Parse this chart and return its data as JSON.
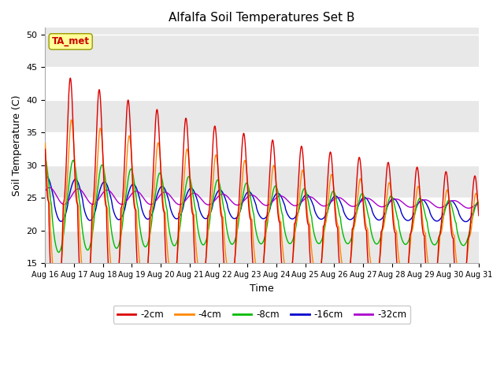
{
  "title": "Alfalfa Soil Temperatures Set B",
  "xlabel": "Time",
  "ylabel": "Soil Temperature (C)",
  "ylim": [
    15,
    51
  ],
  "yticks": [
    15,
    20,
    25,
    30,
    35,
    40,
    45,
    50
  ],
  "xtick_labels": [
    "Aug 16",
    "Aug 17",
    "Aug 18",
    "Aug 19",
    "Aug 20",
    "Aug 21",
    "Aug 22",
    "Aug 23",
    "Aug 24",
    "Aug 25",
    "Aug 26",
    "Aug 27",
    "Aug 28",
    "Aug 29",
    "Aug 30",
    "Aug 31"
  ],
  "colors": {
    "-2cm": "#dd0000",
    "-4cm": "#ff8800",
    "-8cm": "#00bb00",
    "-16cm": "#0000cc",
    "-32cm": "#aa00cc"
  },
  "background_color": "#e8e8e8",
  "fig_background": "#ffffff",
  "ta_met_box_color": "#ffff99",
  "ta_met_text_color": "#cc0000",
  "grid_color": "#ffffff",
  "n_days": 15
}
